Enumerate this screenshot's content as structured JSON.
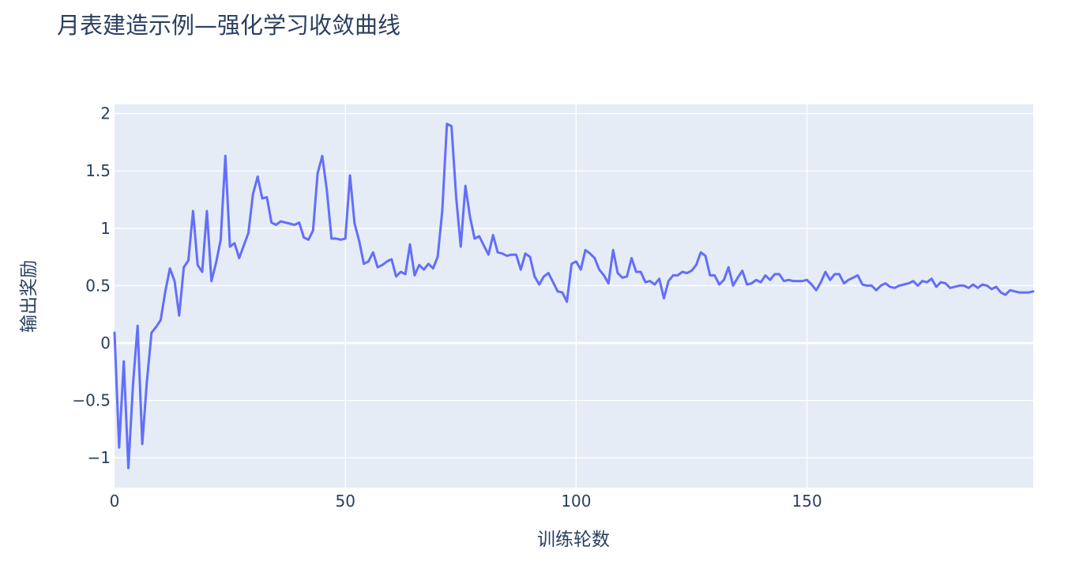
{
  "chart_data": {
    "type": "line",
    "title": "月表建造示例—强化学习收敛曲线",
    "xlabel": "训练轮数",
    "ylabel": "输出奖励",
    "xlim": [
      0,
      199
    ],
    "ylim": [
      -1.26,
      2.08
    ],
    "x_ticks": [
      0,
      50,
      100,
      150
    ],
    "y_ticks": [
      -1,
      -0.5,
      0,
      0.5,
      1,
      1.5,
      2
    ],
    "y_tick_labels": [
      "−1",
      "−0.5",
      "0",
      "0.5",
      "1",
      "1.5",
      "2"
    ],
    "grid": true,
    "line_color": "#636efa",
    "x": [
      0,
      1,
      2,
      3,
      4,
      5,
      6,
      7,
      8,
      9,
      10,
      11,
      12,
      13,
      14,
      15,
      16,
      17,
      18,
      19,
      20,
      21,
      22,
      23,
      24,
      25,
      26,
      27,
      28,
      29,
      30,
      31,
      32,
      33,
      34,
      35,
      36,
      37,
      38,
      39,
      40,
      41,
      42,
      43,
      44,
      45,
      46,
      47,
      48,
      49,
      50,
      51,
      52,
      53,
      54,
      55,
      56,
      57,
      58,
      59,
      60,
      61,
      62,
      63,
      64,
      65,
      66,
      67,
      68,
      69,
      70,
      71,
      72,
      73,
      74,
      75,
      76,
      77,
      78,
      79,
      80,
      81,
      82,
      83,
      84,
      85,
      86,
      87,
      88,
      89,
      90,
      91,
      92,
      93,
      94,
      95,
      96,
      97,
      98,
      99,
      100,
      101,
      102,
      103,
      104,
      105,
      106,
      107,
      108,
      109,
      110,
      111,
      112,
      113,
      114,
      115,
      116,
      117,
      118,
      119,
      120,
      121,
      122,
      123,
      124,
      125,
      126,
      127,
      128,
      129,
      130,
      131,
      132,
      133,
      134,
      135,
      136,
      137,
      138,
      139,
      140,
      141,
      142,
      143,
      144,
      145,
      146,
      147,
      148,
      149,
      150,
      151,
      152,
      153,
      154,
      155,
      156,
      157,
      158,
      159,
      160,
      161,
      162,
      163,
      164,
      165,
      166,
      167,
      168,
      169,
      170,
      171,
      172,
      173,
      174,
      175,
      176,
      177,
      178,
      179,
      180,
      181,
      182,
      183,
      184,
      185,
      186,
      187,
      188,
      189,
      190,
      191,
      192,
      193,
      194,
      195,
      196,
      197,
      198,
      199
    ],
    "values": [
      0.09,
      -0.91,
      -0.16,
      -1.09,
      -0.36,
      0.15,
      -0.88,
      -0.34,
      0.09,
      0.14,
      0.2,
      0.45,
      0.65,
      0.54,
      0.24,
      0.66,
      0.72,
      1.15,
      0.68,
      0.62,
      1.15,
      0.54,
      0.7,
      0.9,
      1.63,
      0.84,
      0.87,
      0.74,
      0.85,
      0.96,
      1.3,
      1.45,
      1.26,
      1.27,
      1.05,
      1.03,
      1.06,
      1.05,
      1.04,
      1.03,
      1.05,
      0.92,
      0.9,
      0.98,
      1.48,
      1.63,
      1.33,
      0.91,
      0.91,
      0.9,
      0.91,
      1.46,
      1.04,
      0.89,
      0.69,
      0.71,
      0.79,
      0.66,
      0.68,
      0.71,
      0.73,
      0.58,
      0.62,
      0.6,
      0.86,
      0.59,
      0.68,
      0.64,
      0.69,
      0.65,
      0.75,
      1.15,
      1.91,
      1.89,
      1.27,
      0.84,
      1.37,
      1.1,
      0.91,
      0.93,
      0.85,
      0.77,
      0.94,
      0.79,
      0.78,
      0.76,
      0.77,
      0.77,
      0.64,
      0.78,
      0.75,
      0.58,
      0.51,
      0.58,
      0.61,
      0.53,
      0.45,
      0.44,
      0.36,
      0.69,
      0.71,
      0.64,
      0.81,
      0.78,
      0.74,
      0.64,
      0.59,
      0.52,
      0.81,
      0.61,
      0.57,
      0.58,
      0.74,
      0.62,
      0.62,
      0.53,
      0.54,
      0.51,
      0.56,
      0.39,
      0.54,
      0.59,
      0.59,
      0.62,
      0.61,
      0.63,
      0.68,
      0.79,
      0.76,
      0.59,
      0.59,
      0.51,
      0.55,
      0.66,
      0.5,
      0.57,
      0.63,
      0.51,
      0.52,
      0.55,
      0.53,
      0.59,
      0.55,
      0.6,
      0.6,
      0.54,
      0.55,
      0.54,
      0.54,
      0.54,
      0.55,
      0.51,
      0.46,
      0.53,
      0.62,
      0.55,
      0.6,
      0.6,
      0.52,
      0.55,
      0.57,
      0.59,
      0.51,
      0.5,
      0.5,
      0.46,
      0.5,
      0.52,
      0.49,
      0.48,
      0.5,
      0.51,
      0.52,
      0.54,
      0.5,
      0.54,
      0.53,
      0.56,
      0.49,
      0.53,
      0.52,
      0.48,
      0.49,
      0.5,
      0.5,
      0.48,
      0.51,
      0.48,
      0.51,
      0.5,
      0.47,
      0.49,
      0.44,
      0.42,
      0.46,
      0.45,
      0.44,
      0.44,
      0.44,
      0.45
    ]
  }
}
